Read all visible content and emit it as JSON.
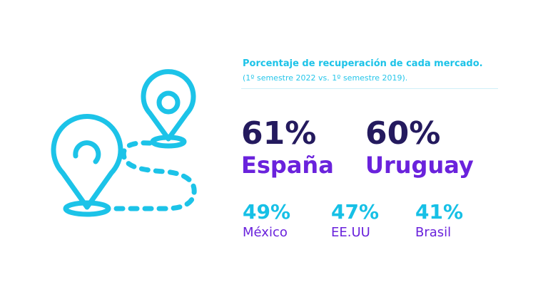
{
  "header": {
    "title": "Porcentaje de recuperación de cada mercado.",
    "subtitle": "(1º semestre 2022 vs. 1º semestre 2019)."
  },
  "markets_main": [
    {
      "percent": "61%",
      "name": "España"
    },
    {
      "percent": "60%",
      "name": "Uruguay"
    }
  ],
  "markets_secondary": [
    {
      "percent": "49%",
      "name": "México"
    },
    {
      "percent": "47%",
      "name": "EE.UU"
    },
    {
      "percent": "41%",
      "name": "Brasil"
    }
  ],
  "colors": {
    "cyan_accent": "#1cc3e8",
    "dark_navy": "#241a5e",
    "purple": "#6a22dc"
  },
  "illustration": {
    "icon": "map-route-pins-icon"
  }
}
